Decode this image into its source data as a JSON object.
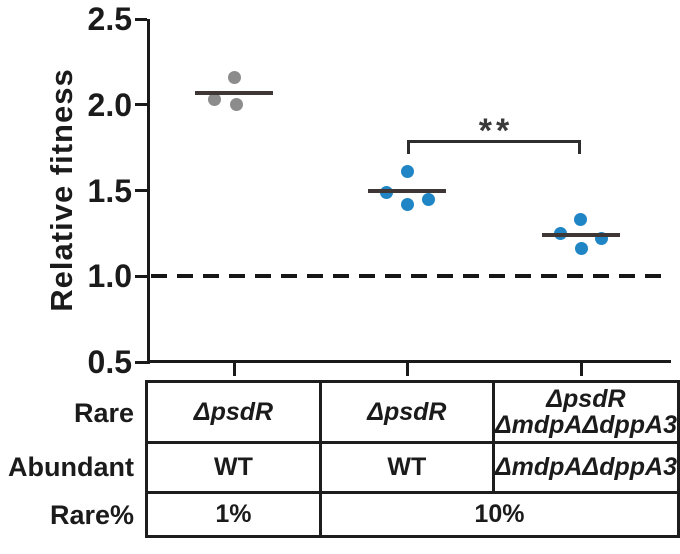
{
  "chart_data": {
    "type": "scatter",
    "ylabel": "Relative fitness",
    "ylim": [
      0.5,
      2.5
    ],
    "yticks": [
      2.5,
      2.0,
      1.5,
      1.0,
      0.5
    ],
    "reference_line": 1.0,
    "grid": false,
    "axis_color": "#1a1a1a",
    "mean_line_color": "#3e3735",
    "groups": [
      {
        "rare": "ΔpsdR",
        "abundant": "WT",
        "rare_pct": "1%",
        "color": "#8c8c8c",
        "mean": 2.07,
        "points": [
          2.16,
          2.03,
          2.0
        ],
        "dx": [
          0,
          -20,
          2
        ]
      },
      {
        "rare": "ΔpsdR",
        "abundant": "WT",
        "rare_pct": "10%",
        "color": "#1f85c4",
        "mean": 1.5,
        "points": [
          1.61,
          1.49,
          1.42,
          1.45
        ],
        "dx": [
          0,
          -21,
          0,
          21
        ]
      },
      {
        "rare": "ΔpsdR ΔmdpAΔdppA3",
        "abundant": "ΔmdpAΔdppA3",
        "rare_pct": "10%",
        "color": "#1f85c4",
        "mean": 1.24,
        "points": [
          1.33,
          1.25,
          1.16,
          1.22
        ],
        "dx": [
          -1,
          -21,
          0,
          20
        ]
      }
    ],
    "significance": {
      "label": "**",
      "between_groups": [
        2,
        3
      ]
    }
  },
  "table": {
    "row_labels": [
      "Rare",
      "Abundant",
      "Rare%"
    ],
    "cells": {
      "rare_1": "ΔpsdR",
      "rare_2": "ΔpsdR",
      "rare_3_line1": "ΔpsdR",
      "rare_3_line2": "ΔmdpAΔdppA3",
      "abundant_1": "WT",
      "abundant_2": "WT",
      "abundant_3": "ΔmdpAΔdppA3",
      "rarepct_1": "1%",
      "rarepct_23": "10%"
    }
  }
}
